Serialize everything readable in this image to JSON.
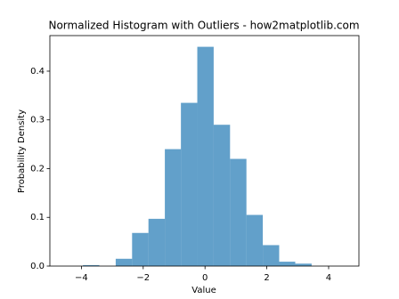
{
  "chart_data": {
    "type": "histogram",
    "title": "Normalized Histogram with Outliers - how2matplotlib.com",
    "x_label": "Value",
    "y_label": "Probability Density",
    "bins": [
      -3.95,
      -3.42,
      -2.89,
      -2.36,
      -1.83,
      -1.3,
      -0.78,
      -0.25,
      0.28,
      0.81,
      1.34,
      1.87,
      2.4,
      2.92,
      3.45
    ],
    "values": [
      0.002,
      0,
      0.015,
      0.068,
      0.097,
      0.24,
      0.335,
      0.45,
      0.29,
      0.22,
      0.105,
      0.043,
      0.009,
      0.005
    ],
    "color": "#1f77b4",
    "xlim": [
      -5.02,
      4.98
    ],
    "xticks": [
      {
        "value": -4,
        "label": "−4"
      },
      {
        "value": -2,
        "label": "−2"
      },
      0,
      2,
      4
    ],
    "ylim": [
      0,
      0.473
    ],
    "yticks": [
      {
        "value": 0,
        "label": "0.0"
      },
      0.1,
      0.2,
      0.3,
      0.4
    ],
    "grid": false
  }
}
